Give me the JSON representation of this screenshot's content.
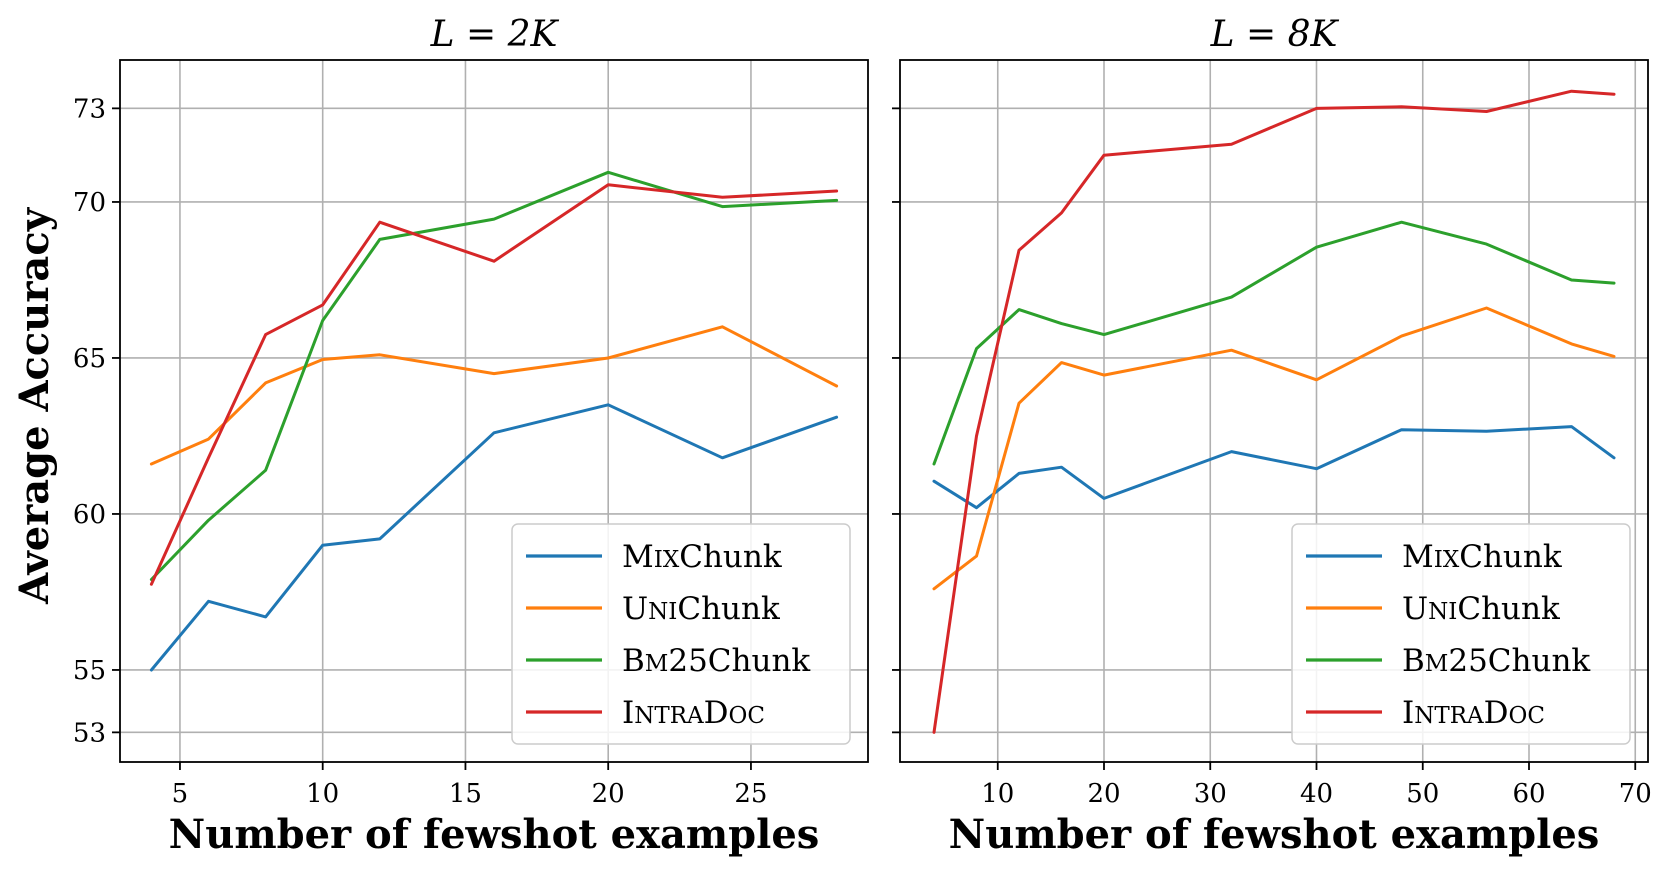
{
  "chart_data": [
    {
      "type": "line",
      "title": "L = 2K",
      "xlabel": "Number of fewshot examples",
      "ylabel": "Average Accuracy",
      "xlim": [
        2.9,
        29.1
      ],
      "ylim": [
        52.05,
        74.55
      ],
      "xticks": [
        5,
        10,
        15,
        20,
        25
      ],
      "yticks": [
        53,
        55,
        60,
        65,
        70,
        73
      ],
      "grid": true,
      "legend_position": "lower-right",
      "x": [
        4,
        6,
        8,
        10,
        12,
        16,
        20,
        24,
        28
      ],
      "series": [
        {
          "name": "MixChunk",
          "color": "#1f77b4",
          "values": [
            55.0,
            57.2,
            56.7,
            59.0,
            59.2,
            62.6,
            63.5,
            61.8,
            63.1
          ]
        },
        {
          "name": "UniChunk",
          "color": "#ff7f0e",
          "values": [
            61.6,
            62.4,
            64.2,
            64.95,
            65.1,
            64.5,
            65.0,
            66.0,
            64.1
          ]
        },
        {
          "name": "Bm25Chunk",
          "color": "#2ca02c",
          "values": [
            57.9,
            59.8,
            61.4,
            66.2,
            68.8,
            69.45,
            70.95,
            69.85,
            70.05
          ]
        },
        {
          "name": "IntraDoc",
          "color": "#d62728",
          "values": [
            57.75,
            61.8,
            65.75,
            66.7,
            69.35,
            68.1,
            70.55,
            70.15,
            70.35
          ]
        }
      ]
    },
    {
      "type": "line",
      "title": "L = 8K",
      "xlabel": "Number of fewshot examples",
      "ylabel": "",
      "xlim": [
        0.8,
        71.2
      ],
      "ylim": [
        52.05,
        74.55
      ],
      "xticks": [
        10,
        20,
        30,
        40,
        50,
        60,
        70
      ],
      "yticks": [
        53,
        55,
        60,
        65,
        70,
        73
      ],
      "grid": true,
      "legend_position": "lower-right",
      "x": [
        4,
        8,
        12,
        16,
        20,
        32,
        40,
        48,
        56,
        64,
        68
      ],
      "series": [
        {
          "name": "MixChunk",
          "color": "#1f77b4",
          "values": [
            61.05,
            60.2,
            61.3,
            61.5,
            60.5,
            62.0,
            61.45,
            62.7,
            62.65,
            62.8,
            61.8
          ]
        },
        {
          "name": "UniChunk",
          "color": "#ff7f0e",
          "values": [
            57.6,
            58.65,
            63.55,
            64.85,
            64.45,
            65.25,
            64.3,
            65.7,
            66.6,
            65.45,
            65.05
          ]
        },
        {
          "name": "Bm25Chunk",
          "color": "#2ca02c",
          "values": [
            61.6,
            65.3,
            66.55,
            66.1,
            65.75,
            66.95,
            68.55,
            69.35,
            68.65,
            67.5,
            67.4
          ]
        },
        {
          "name": "IntraDoc",
          "color": "#d62728",
          "values": [
            53.0,
            62.5,
            68.45,
            69.65,
            71.5,
            71.85,
            73.0,
            73.05,
            72.9,
            73.55,
            73.45
          ]
        }
      ]
    }
  ]
}
